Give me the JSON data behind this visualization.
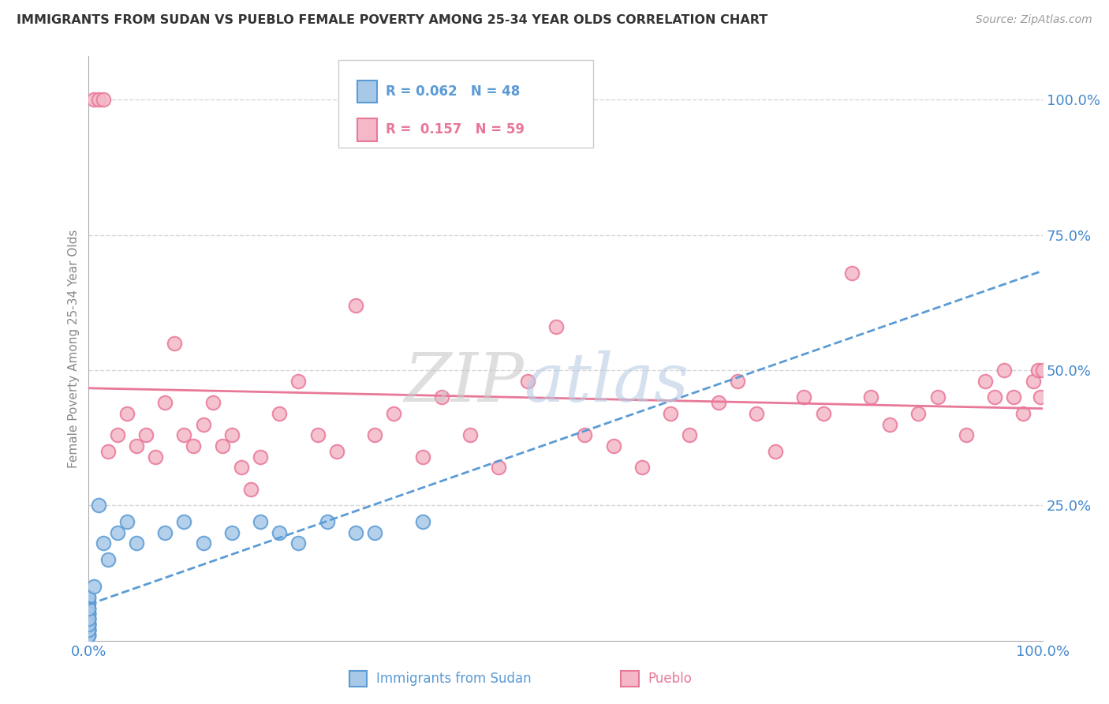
{
  "title": "IMMIGRANTS FROM SUDAN VS PUEBLO FEMALE POVERTY AMONG 25-34 YEAR OLDS CORRELATION CHART",
  "source": "Source: ZipAtlas.com",
  "ylabel": "Female Poverty Among 25-34 Year Olds",
  "legend_label1": "Immigrants from Sudan",
  "legend_label2": "Pueblo",
  "r1": 0.062,
  "n1": 48,
  "r2": 0.157,
  "n2": 59,
  "color_blue_fill": "#a8c8e8",
  "color_blue_edge": "#5b9bd5",
  "color_blue_line": "#5b9bd5",
  "color_pink_fill": "#f4b8c8",
  "color_pink_edge": "#e87898",
  "color_pink_line": "#e87898",
  "background_color": "#ffffff",
  "sudan_x": [
    0.0,
    0.0,
    0.0,
    0.0,
    0.0,
    0.0,
    0.0,
    0.0,
    0.0,
    0.0,
    0.0,
    0.0,
    0.0,
    0.0,
    0.0,
    0.0,
    0.0,
    0.0,
    0.0,
    0.0,
    0.0,
    0.0,
    0.0,
    0.0,
    0.0,
    0.0,
    0.0,
    0.0,
    0.0,
    0.0,
    0.5,
    1.0,
    1.5,
    2.0,
    3.0,
    4.0,
    5.0,
    8.0,
    10.0,
    12.0,
    15.0,
    18.0,
    20.0,
    22.0,
    25.0,
    28.0,
    30.0,
    35.0
  ],
  "sudan_y": [
    2.0,
    3.0,
    1.0,
    4.0,
    5.0,
    2.5,
    3.5,
    1.5,
    4.5,
    6.0,
    7.0,
    2.0,
    3.0,
    1.0,
    8.0,
    5.0,
    3.0,
    4.0,
    6.0,
    2.0,
    3.0,
    1.0,
    4.0,
    7.0,
    5.0,
    2.0,
    8.0,
    3.0,
    4.0,
    6.0,
    10.0,
    25.0,
    18.0,
    15.0,
    20.0,
    22.0,
    18.0,
    20.0,
    22.0,
    18.0,
    20.0,
    22.0,
    20.0,
    18.0,
    22.0,
    20.0,
    20.0,
    22.0
  ],
  "pueblo_x": [
    0.5,
    1.0,
    1.5,
    2.0,
    3.0,
    4.0,
    5.0,
    6.0,
    7.0,
    8.0,
    9.0,
    10.0,
    11.0,
    12.0,
    13.0,
    14.0,
    15.0,
    16.0,
    17.0,
    18.0,
    20.0,
    22.0,
    24.0,
    26.0,
    28.0,
    30.0,
    32.0,
    35.0,
    37.0,
    40.0,
    43.0,
    46.0,
    49.0,
    52.0,
    55.0,
    58.0,
    61.0,
    63.0,
    66.0,
    68.0,
    70.0,
    72.0,
    75.0,
    77.0,
    80.0,
    82.0,
    84.0,
    87.0,
    89.0,
    92.0,
    94.0,
    95.0,
    96.0,
    97.0,
    98.0,
    99.0,
    99.5,
    99.8,
    100.0
  ],
  "pueblo_y": [
    100.0,
    100.0,
    100.0,
    35.0,
    38.0,
    42.0,
    36.0,
    38.0,
    34.0,
    44.0,
    55.0,
    38.0,
    36.0,
    40.0,
    44.0,
    36.0,
    38.0,
    32.0,
    28.0,
    34.0,
    42.0,
    48.0,
    38.0,
    35.0,
    62.0,
    38.0,
    42.0,
    34.0,
    45.0,
    38.0,
    32.0,
    48.0,
    58.0,
    38.0,
    36.0,
    32.0,
    42.0,
    38.0,
    44.0,
    48.0,
    42.0,
    35.0,
    45.0,
    42.0,
    68.0,
    45.0,
    40.0,
    42.0,
    45.0,
    38.0,
    48.0,
    45.0,
    50.0,
    45.0,
    42.0,
    48.0,
    50.0,
    45.0,
    50.0
  ],
  "xlim": [
    0,
    100
  ],
  "ylim": [
    0,
    108
  ],
  "ytick_vals": [
    25,
    50,
    75,
    100
  ],
  "grid_color": "#cccccc",
  "watermark_zip_color": "#cccccc",
  "watermark_atlas_color": "#c8d8f0",
  "title_color": "#333333",
  "source_color": "#999999",
  "ylabel_color": "#888888",
  "tick_label_color": "#4488cc"
}
